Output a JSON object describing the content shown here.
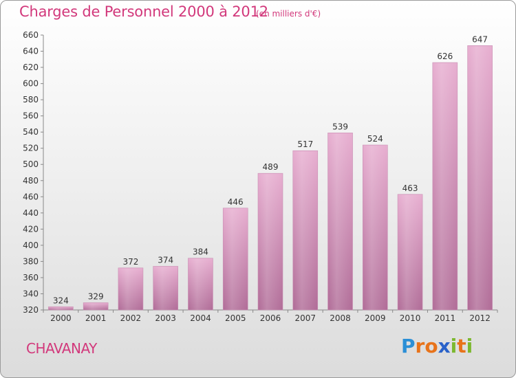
{
  "header": {
    "title": "Charges de Personnel 2000 à 2012",
    "unit": "(en milliers d'€)"
  },
  "footer": {
    "commune": "CHAVANAY",
    "logo_letters": [
      {
        "ch": "P",
        "color": "#2b8fd6"
      },
      {
        "ch": "r",
        "color": "#e8731a"
      },
      {
        "ch": "o",
        "color": "#e8731a"
      },
      {
        "ch": "x",
        "color": "#2a62c9"
      },
      {
        "ch": "i",
        "color": "#7cb82f"
      },
      {
        "ch": "t",
        "color": "#e8731a"
      },
      {
        "ch": "i",
        "color": "#7cb82f"
      }
    ]
  },
  "colors": {
    "bar_top": "#e7aed0",
    "bar_bottom": "#b16d98",
    "accent": "#d2387b"
  },
  "chart_data": {
    "type": "bar",
    "title": "Charges de Personnel 2000 à 2012",
    "subtitle": "(en milliers d'€)",
    "categories": [
      "2000",
      "2001",
      "2002",
      "2003",
      "2004",
      "2005",
      "2006",
      "2007",
      "2008",
      "2009",
      "2010",
      "2011",
      "2012"
    ],
    "values": [
      324,
      329,
      372,
      374,
      384,
      446,
      489,
      517,
      539,
      524,
      463,
      626,
      647
    ],
    "data_labels": [
      "324",
      "329",
      "372",
      "374",
      "384",
      "446",
      "489",
      "517",
      "539",
      "524",
      "463",
      "626",
      "647"
    ],
    "ylim": [
      320,
      660
    ],
    "yticks": [
      320,
      340,
      360,
      380,
      400,
      420,
      440,
      460,
      480,
      500,
      520,
      540,
      560,
      580,
      600,
      620,
      640,
      660
    ],
    "grid": false,
    "xlabel": "",
    "ylabel": ""
  }
}
